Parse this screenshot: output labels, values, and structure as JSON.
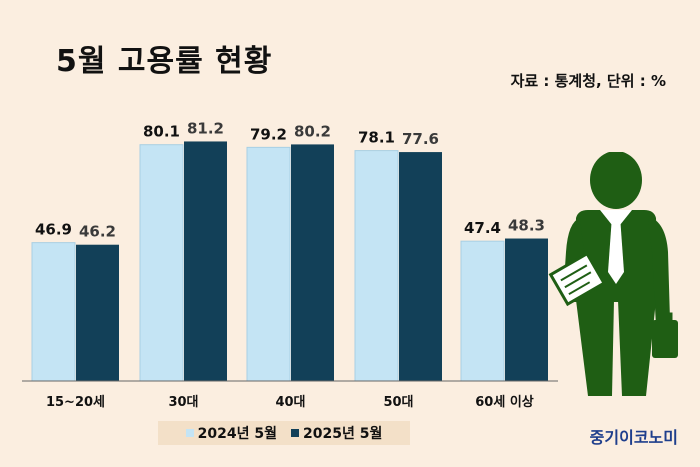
{
  "title": "5월 고용률 현황",
  "source": "자료 : 통계청, 단위 : %",
  "brand": "중기이코노미",
  "chart_data": {
    "type": "bar",
    "categories": [
      "15~20세",
      "30대",
      "40대",
      "50대",
      "60세 이상"
    ],
    "series": [
      {
        "name": "2024년 5월",
        "values": [
          46.9,
          80.1,
          79.2,
          78.1,
          47.4
        ],
        "color": "#c4e4f4",
        "label_color": "#111111"
      },
      {
        "name": "2025년 5월",
        "values": [
          46.2,
          81.2,
          80.2,
          77.6,
          48.3
        ],
        "color": "#124058",
        "label_color": "#3a3a3a"
      }
    ],
    "ylim": [
      0,
      100
    ],
    "grid": false,
    "legend_position": "bottom"
  },
  "colors": {
    "background": "#fbeee0",
    "baseline": "#666666",
    "figure": "#1f5e14"
  },
  "illustration": "businessman-icon"
}
